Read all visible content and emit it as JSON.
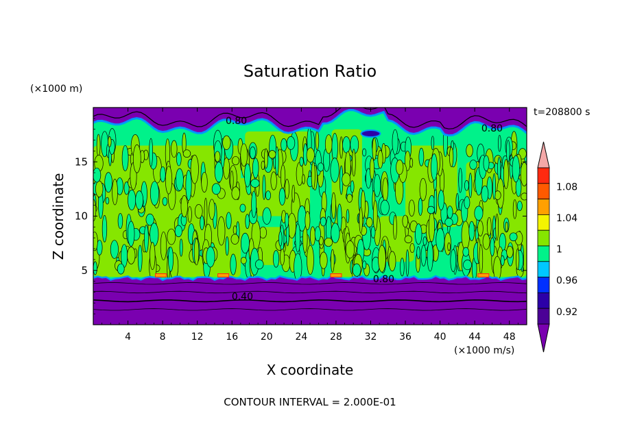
{
  "chart_data": {
    "type": "heatmap",
    "title": "Saturation Ratio",
    "xlabel": "X coordinate",
    "ylabel": "Z coordinate",
    "x_unit": "(×1000 m/s)",
    "y_unit": "(×1000 m)",
    "time_label": "t=208800 s",
    "footer": "CONTOUR INTERVAL = 2.000E-01",
    "xlim": [
      0,
      50
    ],
    "ylim": [
      0,
      20
    ],
    "x_ticks": [
      "4",
      "8",
      "12",
      "16",
      "20",
      "24",
      "28",
      "32",
      "36",
      "40",
      "44",
      "48"
    ],
    "x_tick_values": [
      4,
      8,
      12,
      16,
      20,
      24,
      28,
      32,
      36,
      40,
      44,
      48
    ],
    "y_ticks": [
      "5",
      "10",
      "15"
    ],
    "y_tick_values": [
      5,
      10,
      15
    ],
    "contour_labels": [
      {
        "text": "0.80",
        "x": 16.5,
        "y": 18.5
      },
      {
        "text": "0.80",
        "x": 46.0,
        "y": 17.8
      },
      {
        "text": "0.80",
        "x": 33.5,
        "y": 3.9
      },
      {
        "text": "0.40",
        "x": 17.2,
        "y": 2.3
      }
    ],
    "colorbar": {
      "levels": [
        0.92,
        0.96,
        1,
        1.04,
        1.08
      ],
      "labels": [
        "0.92",
        "0.96",
        "1",
        "1.04",
        "1.08"
      ],
      "colors": [
        "#4b0096",
        "#2c00a8",
        "#0030ff",
        "#00c8ff",
        "#00f28a",
        "#86e600",
        "#f4f400",
        "#ffa000",
        "#ff5a00",
        "#ff2a10",
        "#f4a8a8"
      ],
      "under_color": "#7a00b0",
      "over_color": "#f4a8a8"
    },
    "colors": {
      "below": "#7a00b0",
      "near_one": "#00f28a",
      "above_one": "#86e600",
      "ice_edge": "#0096ff"
    }
  }
}
